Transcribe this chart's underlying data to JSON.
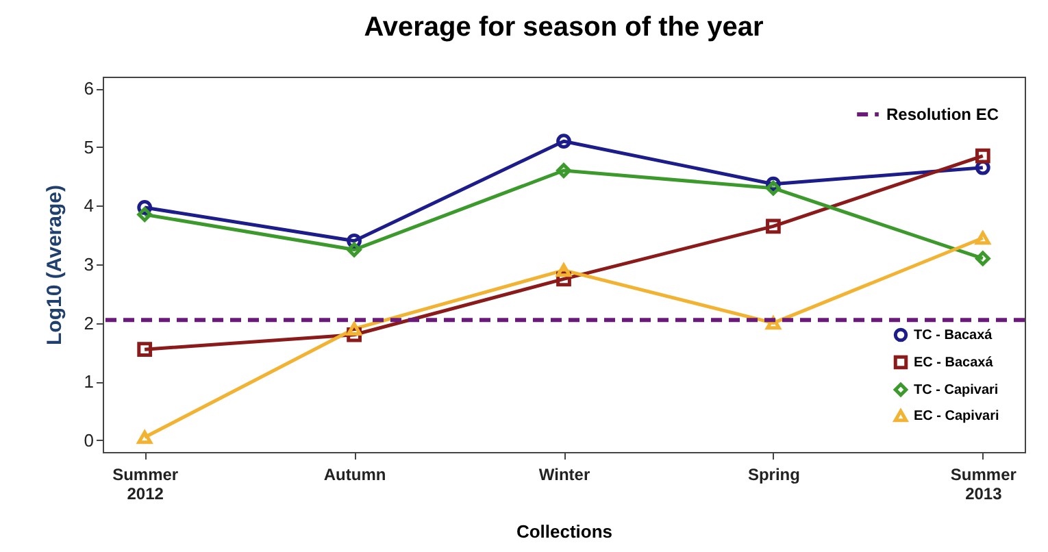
{
  "chart_data": {
    "type": "line",
    "title": "Average for season of the year",
    "xlabel": "Collections",
    "ylabel": "Log10 (Average)",
    "categories": [
      "Summer 2012",
      "Autumn",
      "Winter",
      "Spring",
      "Summer 2013"
    ],
    "ylim": [
      -0.2,
      6.2
    ],
    "yticks": [
      0,
      1,
      2,
      3,
      4,
      5,
      6
    ],
    "grid": false,
    "legend": "bottom right",
    "series": [
      {
        "name": "TC  - Bacaxá",
        "color": "#1c1c8a",
        "marker": "circle",
        "values": [
          3.97,
          3.4,
          5.1,
          4.37,
          4.65
        ]
      },
      {
        "name": "EC - Bacaxá",
        "color": "#8b1a1a",
        "marker": "square",
        "values": [
          1.55,
          1.8,
          2.75,
          3.65,
          4.85
        ]
      },
      {
        "name": "TC - Capivari",
        "color": "#3c9a2c",
        "marker": "diamond",
        "values": [
          3.85,
          3.25,
          4.6,
          4.3,
          3.1
        ]
      },
      {
        "name": "EC - Capivari",
        "color": "#f2b232",
        "marker": "triangle",
        "values": [
          0.05,
          1.9,
          2.9,
          2.0,
          3.45
        ]
      }
    ],
    "ref_lines": [
      {
        "axis": "y",
        "value": 2.05,
        "label": "Resolution EC",
        "color": "#6a1b7a",
        "line_style": "dashed"
      }
    ]
  }
}
